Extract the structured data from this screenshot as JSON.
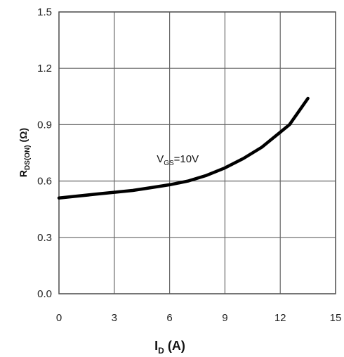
{
  "chart_data": {
    "type": "line",
    "xlabel": {
      "main": "I",
      "sub": "D",
      "unit": " (A)"
    },
    "ylabel": {
      "main": "R",
      "sub": "DS(ON)",
      "unit": " (Ω)"
    },
    "xlim": [
      0,
      15
    ],
    "ylim": [
      0,
      1.5
    ],
    "x_ticks": [
      0,
      3,
      6,
      9,
      12,
      15
    ],
    "y_ticks": [
      0.0,
      0.3,
      0.6,
      0.9,
      1.2,
      1.5
    ],
    "x_tick_labels": [
      "0",
      "3",
      "6",
      "9",
      "12",
      "15"
    ],
    "y_tick_labels": [
      "0.0",
      "0.3",
      "0.6",
      "0.9",
      "1.2",
      "1.5"
    ],
    "grid": true,
    "legend": "none",
    "annotation": {
      "main": "V",
      "sub": "GS",
      "rest": "=10V",
      "x": 5.3,
      "y": 0.7
    },
    "series": [
      {
        "color": "#000000",
        "x": [
          0,
          1,
          2,
          3,
          4,
          5,
          6,
          7,
          8,
          9,
          10,
          11,
          12,
          12.5,
          13,
          13.5
        ],
        "y": [
          0.51,
          0.52,
          0.53,
          0.54,
          0.55,
          0.565,
          0.58,
          0.6,
          0.63,
          0.67,
          0.72,
          0.78,
          0.86,
          0.9,
          0.97,
          1.04
        ]
      }
    ]
  }
}
